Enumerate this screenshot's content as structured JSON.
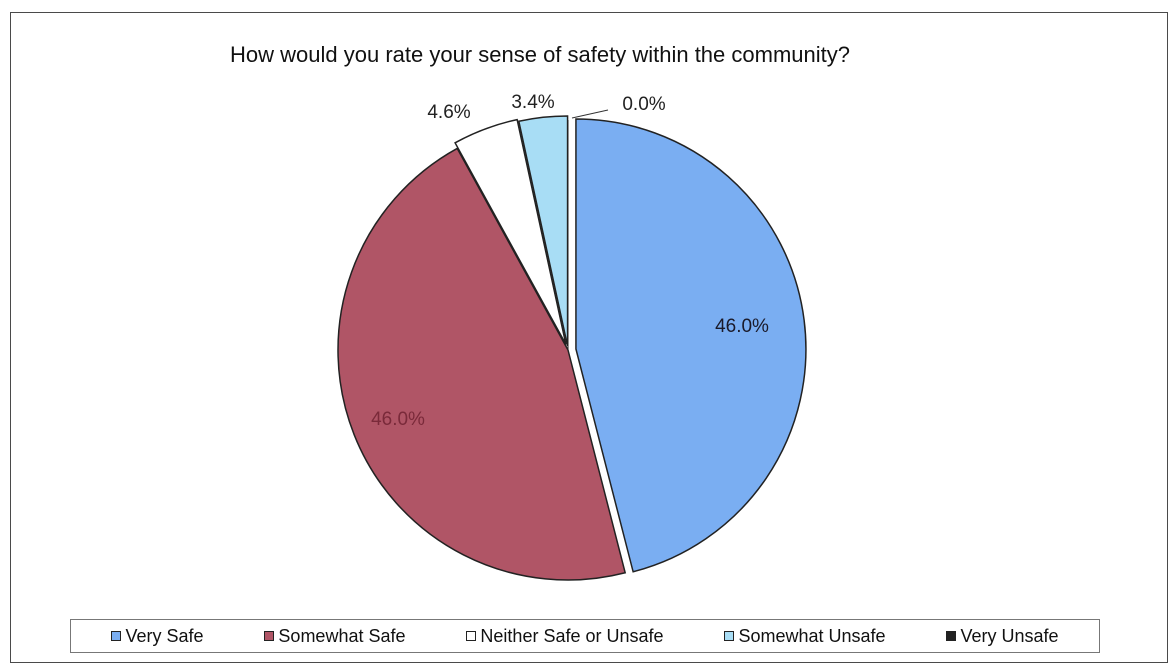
{
  "chart_data": {
    "type": "pie",
    "title": "How would you rate your sense of safety within the community?",
    "categories": [
      "Very Safe",
      "Somewhat Safe",
      "Neither Safe or Unsafe",
      "Somewhat Unsafe",
      "Very Unsafe"
    ],
    "values": [
      46.0,
      46.0,
      4.6,
      3.4,
      0.0
    ],
    "labels": [
      "46.0%",
      "46.0%",
      "4.6%",
      "3.4%",
      "0.0%"
    ],
    "colors": [
      "#7aaef2",
      "#b05566",
      "#ffffff",
      "#a8ddf5",
      "#222222"
    ],
    "legend_position": "bottom"
  }
}
